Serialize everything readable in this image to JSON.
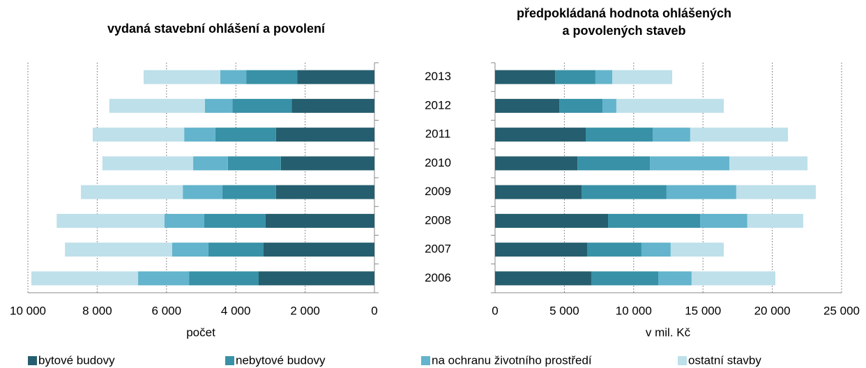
{
  "chart_data": [
    {
      "type": "hbar_stacked",
      "title": "vydaná stavební ohlášení a povolení",
      "xlabel": "počet",
      "xlim": [
        10000,
        0
      ],
      "xticks": [
        {
          "value": 10000,
          "label": "10 000"
        },
        {
          "value": 8000,
          "label": "8 000"
        },
        {
          "value": 6000,
          "label": "6 000"
        },
        {
          "value": 4000,
          "label": "4 000"
        },
        {
          "value": 2000,
          "label": "2 000"
        },
        0
      ],
      "grid": true,
      "series": [
        {
          "name": "bytové budovy",
          "color": "#255e6e",
          "values": [
            3340,
            3200,
            3140,
            2840,
            2700,
            2840,
            2390,
            2230
          ]
        },
        {
          "name": "nebytové budovy",
          "color": "#3891a6",
          "values": [
            2010,
            1590,
            1770,
            1550,
            1530,
            1750,
            1710,
            1470
          ]
        },
        {
          "name": "na ochranu životního prostředí",
          "color": "#63b4cc",
          "values": [
            1470,
            1050,
            1150,
            1140,
            1000,
            900,
            790,
            750
          ]
        },
        {
          "name": "ostatní stavby",
          "color": "#bde0ea",
          "values": [
            3080,
            3090,
            3110,
            2940,
            2620,
            2640,
            2760,
            2210
          ]
        }
      ]
    },
    {
      "type": "hbar_stacked",
      "title": [
        "předpokládaná hodnota ohlášených",
        "a povolených staveb"
      ],
      "xlabel": "v mil. Kč",
      "categories": [
        "2006",
        "2007",
        "2008",
        "2009",
        "2010",
        "2011",
        "2012",
        "2013"
      ],
      "xlim": [
        0,
        25000
      ],
      "xticks": [
        0,
        {
          "value": 5000,
          "label": "5 000"
        },
        {
          "value": 10000,
          "label": "10 000"
        },
        {
          "value": 15000,
          "label": "15 000"
        },
        {
          "value": 20000,
          "label": "20 000"
        },
        {
          "value": 25000,
          "label": "25 000"
        }
      ],
      "grid": true,
      "series": [
        {
          "name": "bytové budovy",
          "color": "#255e6e",
          "values": [
            6940,
            6640,
            8150,
            6240,
            5940,
            6540,
            4630,
            4330
          ]
        },
        {
          "name": "nebytové budovy",
          "color": "#3891a6",
          "values": [
            4830,
            3920,
            6640,
            6130,
            5230,
            4830,
            3120,
            2910
          ]
        },
        {
          "name": "na ochranu životního prostředí",
          "color": "#63b4cc",
          "values": [
            2410,
            2110,
            3410,
            5030,
            5730,
            2710,
            1000,
            1210
          ]
        },
        {
          "name": "ostatní stavby",
          "color": "#bde0ea",
          "values": [
            6040,
            3830,
            4030,
            5740,
            5640,
            7050,
            7750,
            4330
          ]
        }
      ]
    }
  ]
}
